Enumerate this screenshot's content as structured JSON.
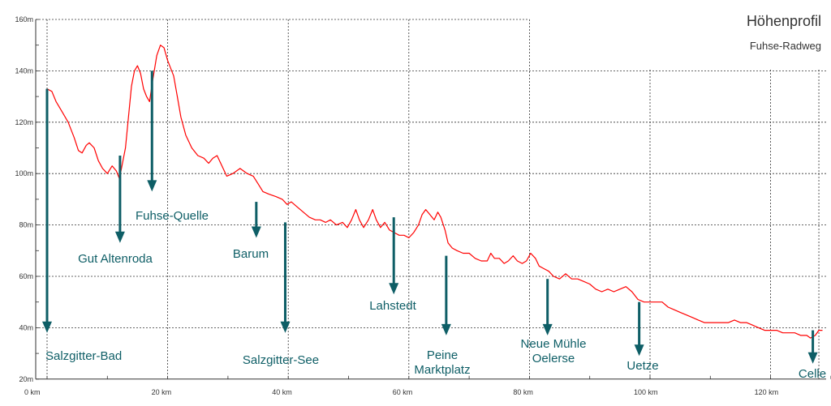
{
  "chart_data": {
    "type": "line",
    "title": "Höhenprofil",
    "subtitle": "Fuhse-Radweg",
    "xlabel": "",
    "ylabel": "",
    "xlim": [
      0,
      128
    ],
    "ylim": [
      20,
      160
    ],
    "x_ticks": [
      0,
      20,
      40,
      60,
      80,
      100,
      120
    ],
    "x_tick_labels": [
      "0 km",
      "20 km",
      "40 km",
      "60 km",
      "80 km",
      "100 km",
      "120 km"
    ],
    "y_ticks": [
      20,
      40,
      60,
      80,
      100,
      120,
      140,
      160
    ],
    "y_tick_labels": [
      "20m",
      "40m",
      "60m",
      "80m",
      "100m",
      "120m",
      "140m",
      "160m"
    ],
    "grid": true,
    "colors": {
      "line": "#ff0000",
      "marker": "#0e5e66",
      "grid": "#333333"
    },
    "series": [
      {
        "name": "",
        "points": [
          [
            0.0,
            133
          ],
          [
            0.8,
            132
          ],
          [
            1.5,
            128
          ],
          [
            2.5,
            124
          ],
          [
            3.5,
            120
          ],
          [
            4.5,
            114
          ],
          [
            5.2,
            109
          ],
          [
            5.8,
            108
          ],
          [
            6.5,
            111
          ],
          [
            7.0,
            112
          ],
          [
            7.8,
            110
          ],
          [
            8.5,
            105
          ],
          [
            9.2,
            102
          ],
          [
            10.0,
            100
          ],
          [
            10.8,
            103
          ],
          [
            11.5,
            101
          ],
          [
            12.0,
            98
          ],
          [
            12.5,
            104
          ],
          [
            13.0,
            110
          ],
          [
            13.5,
            122
          ],
          [
            14.0,
            134
          ],
          [
            14.5,
            140
          ],
          [
            15.0,
            142
          ],
          [
            15.5,
            139
          ],
          [
            16.0,
            133
          ],
          [
            16.5,
            130
          ],
          [
            17.0,
            128
          ],
          [
            17.5,
            136
          ],
          [
            18.2,
            146
          ],
          [
            18.8,
            150
          ],
          [
            19.4,
            149
          ],
          [
            20.0,
            144
          ],
          [
            20.5,
            141
          ],
          [
            21.0,
            138
          ],
          [
            21.6,
            130
          ],
          [
            22.2,
            122
          ],
          [
            23.0,
            115
          ],
          [
            24.0,
            110
          ],
          [
            25.0,
            107
          ],
          [
            26.0,
            106
          ],
          [
            26.8,
            104
          ],
          [
            27.5,
            106
          ],
          [
            28.2,
            107
          ],
          [
            29.0,
            103
          ],
          [
            29.8,
            99
          ],
          [
            30.8,
            100
          ],
          [
            32.0,
            102
          ],
          [
            33.2,
            100
          ],
          [
            34.2,
            99
          ],
          [
            35.0,
            96
          ],
          [
            35.8,
            93
          ],
          [
            36.8,
            92
          ],
          [
            38.0,
            91
          ],
          [
            39.0,
            90
          ],
          [
            39.8,
            88
          ],
          [
            40.5,
            89
          ],
          [
            41.5,
            87
          ],
          [
            42.5,
            85
          ],
          [
            43.5,
            83
          ],
          [
            44.5,
            82
          ],
          [
            45.3,
            82
          ],
          [
            46.2,
            81
          ],
          [
            47.0,
            82
          ],
          [
            48.0,
            80
          ],
          [
            49.0,
            81
          ],
          [
            49.8,
            79
          ],
          [
            50.5,
            82
          ],
          [
            51.2,
            86
          ],
          [
            51.8,
            82
          ],
          [
            52.5,
            79
          ],
          [
            53.3,
            82
          ],
          [
            54.0,
            86
          ],
          [
            54.6,
            82
          ],
          [
            55.3,
            79
          ],
          [
            56.0,
            81
          ],
          [
            56.8,
            78
          ],
          [
            57.6,
            77
          ],
          [
            58.4,
            76
          ],
          [
            59.2,
            76
          ],
          [
            60.0,
            75
          ],
          [
            60.8,
            77
          ],
          [
            61.6,
            80
          ],
          [
            62.2,
            84
          ],
          [
            62.8,
            86
          ],
          [
            63.5,
            84
          ],
          [
            64.2,
            82
          ],
          [
            64.8,
            85
          ],
          [
            65.3,
            83
          ],
          [
            66.0,
            78
          ],
          [
            66.5,
            73
          ],
          [
            67.2,
            71
          ],
          [
            68.0,
            70
          ],
          [
            69.0,
            69
          ],
          [
            70.0,
            69
          ],
          [
            71.0,
            67
          ],
          [
            72.0,
            66
          ],
          [
            73.0,
            66
          ],
          [
            73.6,
            69
          ],
          [
            74.2,
            67
          ],
          [
            75.0,
            67
          ],
          [
            75.8,
            65
          ],
          [
            76.5,
            66
          ],
          [
            77.3,
            68
          ],
          [
            78.0,
            66
          ],
          [
            78.8,
            65
          ],
          [
            79.5,
            66
          ],
          [
            80.2,
            69
          ],
          [
            81.0,
            67
          ],
          [
            81.6,
            64
          ],
          [
            82.4,
            63
          ],
          [
            83.2,
            62
          ],
          [
            84.0,
            60
          ],
          [
            85.0,
            59
          ],
          [
            86.0,
            61
          ],
          [
            87.0,
            59
          ],
          [
            88.0,
            59
          ],
          [
            89.0,
            58
          ],
          [
            90.0,
            57
          ],
          [
            91.0,
            55
          ],
          [
            92.0,
            54
          ],
          [
            93.0,
            55
          ],
          [
            94.0,
            54
          ],
          [
            95.0,
            55
          ],
          [
            96.0,
            56
          ],
          [
            97.0,
            54
          ],
          [
            98.0,
            51
          ],
          [
            99.0,
            50
          ],
          [
            100.0,
            50
          ],
          [
            101.0,
            50
          ],
          [
            102.0,
            50
          ],
          [
            103.0,
            48
          ],
          [
            104.0,
            47
          ],
          [
            105.0,
            46
          ],
          [
            106.0,
            45
          ],
          [
            107.0,
            44
          ],
          [
            108.0,
            43
          ],
          [
            109.0,
            42
          ],
          [
            110.0,
            42
          ],
          [
            111.0,
            42
          ],
          [
            112.0,
            42
          ],
          [
            113.0,
            42
          ],
          [
            114.0,
            43
          ],
          [
            115.0,
            42
          ],
          [
            116.0,
            42
          ],
          [
            117.0,
            41
          ],
          [
            118.0,
            40
          ],
          [
            119.0,
            39
          ],
          [
            120.0,
            39
          ],
          [
            121.0,
            39
          ],
          [
            122.0,
            38
          ],
          [
            123.0,
            38
          ],
          [
            124.0,
            38
          ],
          [
            125.0,
            37
          ],
          [
            126.0,
            37
          ],
          [
            126.6,
            36
          ],
          [
            127.4,
            37
          ],
          [
            128.0,
            39
          ],
          [
            128.6,
            39
          ]
        ]
      }
    ],
    "annotations": [
      {
        "label": [
          "Salzgitter-Bad"
        ],
        "km": 0.0,
        "from_m": 133,
        "to_m": 38
      },
      {
        "label": [
          "Gut Altenroda"
        ],
        "km": 12.1,
        "from_m": 107,
        "to_m": 73
      },
      {
        "label": [
          "Fuhse-Quelle"
        ],
        "km": 17.4,
        "from_m": 140,
        "to_m": 93
      },
      {
        "label": [
          "Barum"
        ],
        "km": 34.7,
        "from_m": 89,
        "to_m": 75
      },
      {
        "label": [
          "Salzgitter-See"
        ],
        "km": 39.5,
        "from_m": 81,
        "to_m": 38
      },
      {
        "label": [
          "Lahstedt"
        ],
        "km": 57.5,
        "from_m": 83,
        "to_m": 53
      },
      {
        "label": [
          "Peine",
          "Marktplatz"
        ],
        "km": 66.2,
        "from_m": 68,
        "to_m": 37
      },
      {
        "label": [
          "Neue Mühle",
          "Oelerse"
        ],
        "km": 83.0,
        "from_m": 59,
        "to_m": 37
      },
      {
        "label": [
          "Uetze"
        ],
        "km": 98.2,
        "from_m": 50,
        "to_m": 29
      },
      {
        "label": [
          "Celle"
        ],
        "km": 127.0,
        "from_m": 39,
        "to_m": 26
      }
    ]
  }
}
